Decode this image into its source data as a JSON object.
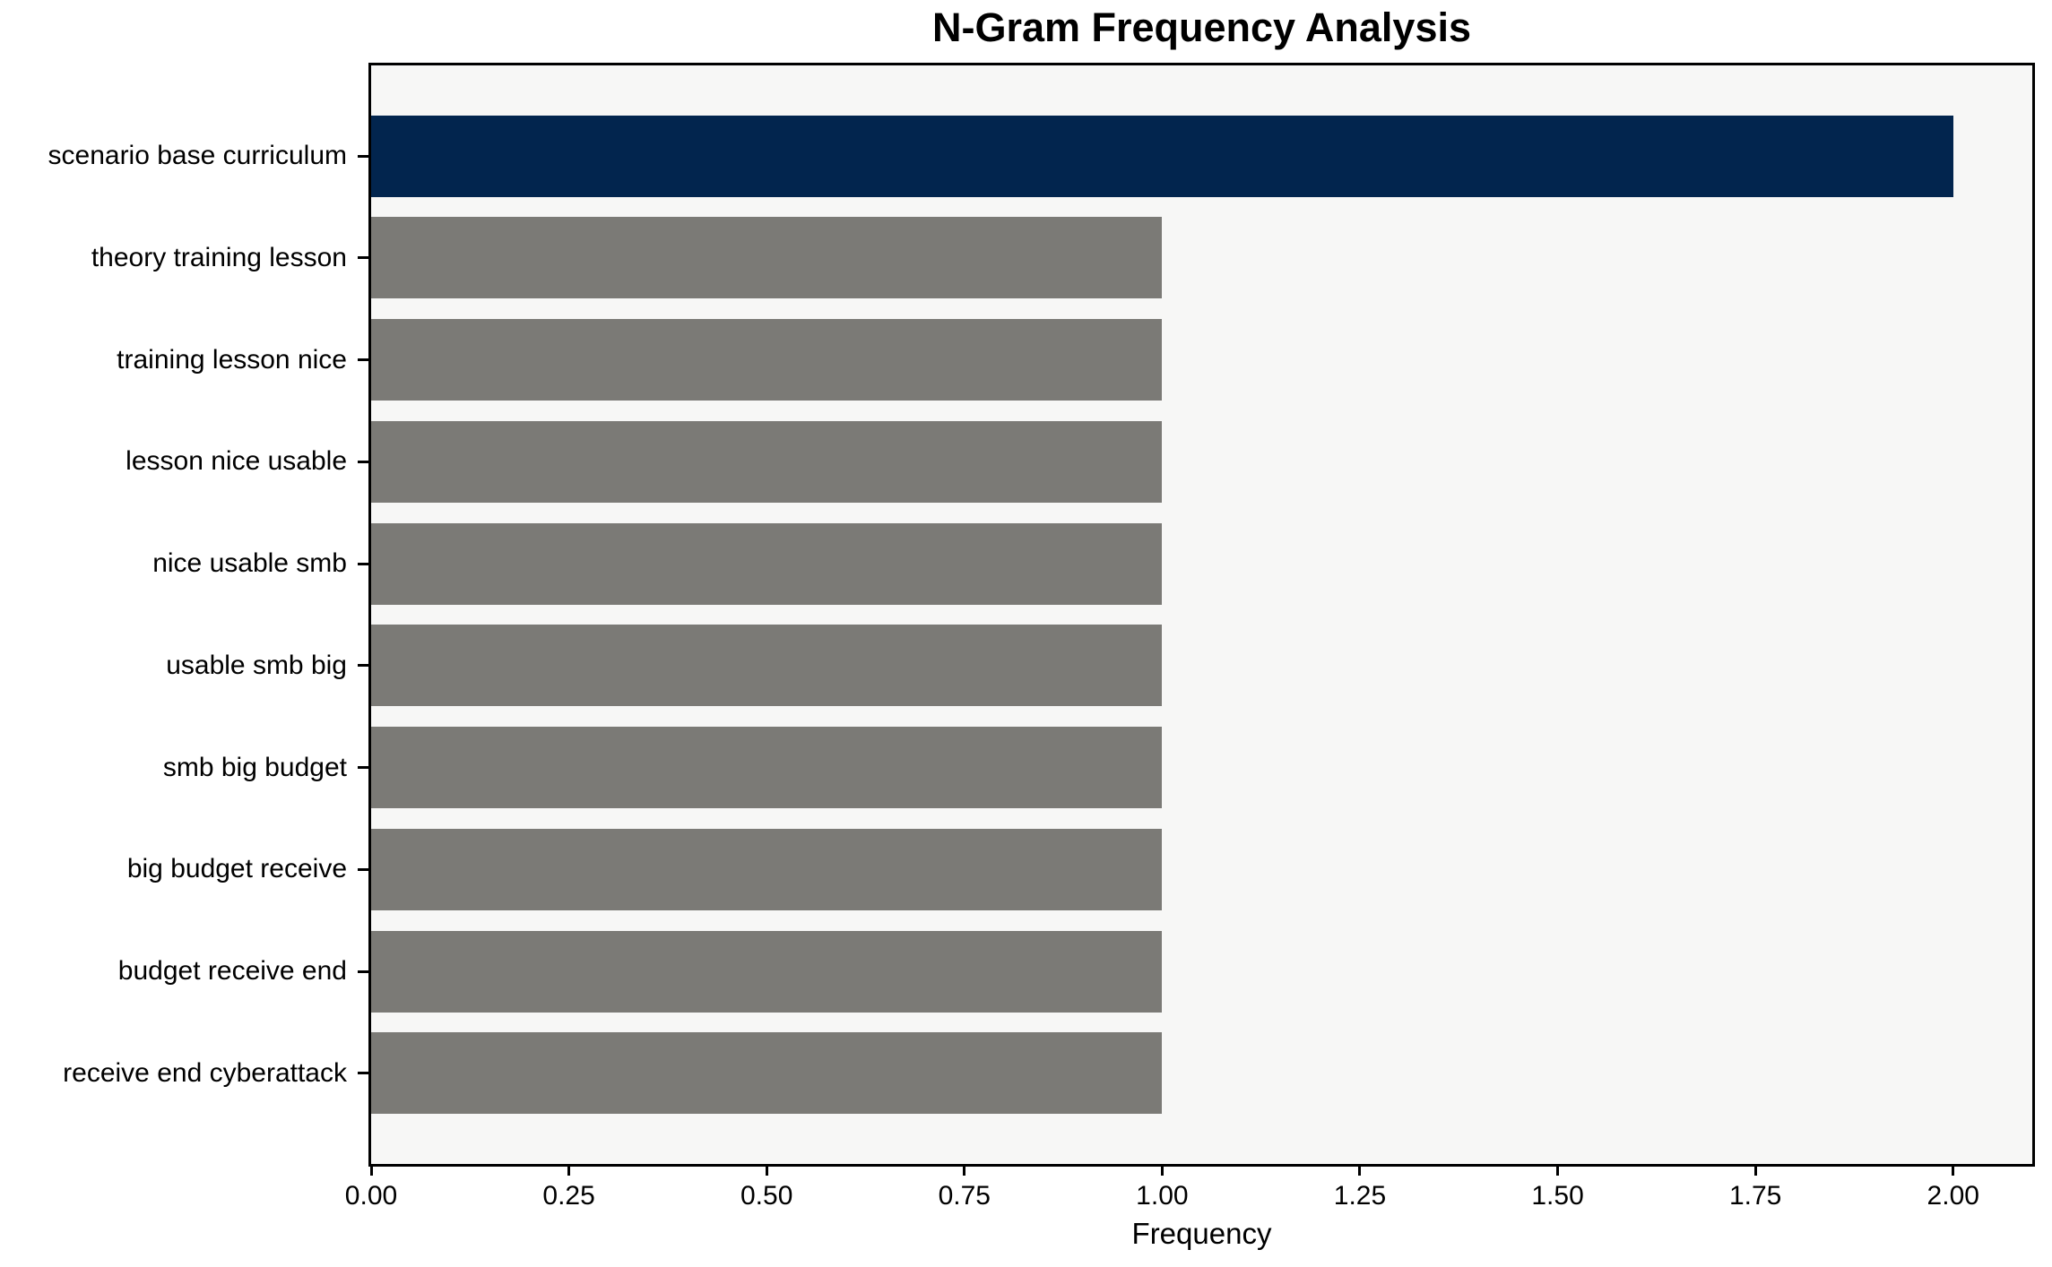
{
  "chart_data": {
    "type": "bar",
    "orientation": "horizontal",
    "title": "N-Gram Frequency Analysis",
    "xlabel": "Frequency",
    "ylabel": "",
    "categories": [
      "scenario base curriculum",
      "theory training lesson",
      "training lesson nice",
      "lesson nice usable",
      "nice usable smb",
      "usable smb big",
      "smb big budget",
      "big budget receive",
      "budget receive end",
      "receive end cyberattack"
    ],
    "values": [
      2.0,
      1.0,
      1.0,
      1.0,
      1.0,
      1.0,
      1.0,
      1.0,
      1.0,
      1.0
    ],
    "bar_colors": [
      "#02254e",
      "#7b7a76",
      "#7b7a76",
      "#7b7a76",
      "#7b7a76",
      "#7b7a76",
      "#7b7a76",
      "#7b7a76",
      "#7b7a76",
      "#7b7a76"
    ],
    "xticks": [
      {
        "value": 0.0,
        "label": "0.00"
      },
      {
        "value": 0.25,
        "label": "0.25"
      },
      {
        "value": 0.5,
        "label": "0.50"
      },
      {
        "value": 0.75,
        "label": "0.75"
      },
      {
        "value": 1.0,
        "label": "1.00"
      },
      {
        "value": 1.25,
        "label": "1.25"
      },
      {
        "value": 1.5,
        "label": "1.50"
      },
      {
        "value": 1.75,
        "label": "1.75"
      },
      {
        "value": 2.0,
        "label": "2.00"
      }
    ],
    "xlim": [
      0,
      2.1
    ],
    "grid": false,
    "legend_position": "none",
    "colors": {
      "highlight_bar": "#02254e",
      "default_bar": "#7b7a76",
      "plot_background": "#f7f7f6",
      "figure_background": "#ffffff",
      "spine": "#000000",
      "text": "#000000"
    }
  }
}
